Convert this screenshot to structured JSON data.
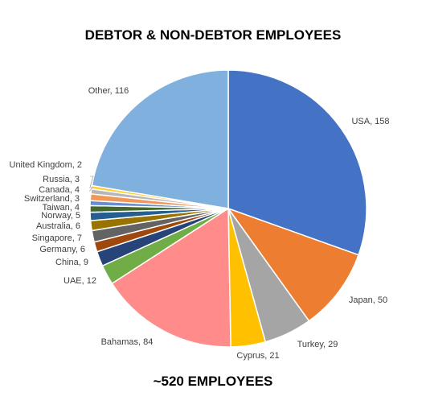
{
  "chart_data": {
    "type": "pie",
    "title": "DEBTOR & NON-DEBTOR EMPLOYEES",
    "footer": "~520 EMPLOYEES",
    "categories": [
      "USA",
      "Japan",
      "Turkey",
      "Cyprus",
      "Bahamas",
      "UAE",
      "China",
      "Germany",
      "Singapore",
      "Australia",
      "Norway",
      "Taiwan",
      "Switzerland",
      "Canada",
      "Russia",
      "United Kingdom",
      "Other"
    ],
    "values": [
      158,
      50,
      29,
      21,
      84,
      12,
      9,
      6,
      7,
      6,
      5,
      4,
      3,
      4,
      3,
      2,
      116
    ],
    "labels": [
      "USA, 158",
      "Japan, 50",
      "Turkey, 29",
      "Cyprus, 21",
      "Bahamas, 84",
      "UAE, 12",
      "China, 9",
      "Germany, 6",
      "Singapore, 7",
      "Australia, 6",
      "Norway, 5",
      "Taiwan, 4",
      "Switzerland, 3",
      "Canada, 4",
      "Russia, 3",
      "United Kingdom, 2",
      "Other, 116"
    ],
    "colors": [
      "#4472C4",
      "#ED7D31",
      "#A5A5A5",
      "#FFC000",
      "#FF8B8B",
      "#70AD47",
      "#264478",
      "#9E480E",
      "#636363",
      "#997300",
      "#255E91",
      "#43682B",
      "#698ED0",
      "#F1975A",
      "#B7B7B7",
      "#FFCD33",
      "#7FB0DE"
    ],
    "legend": "none"
  }
}
